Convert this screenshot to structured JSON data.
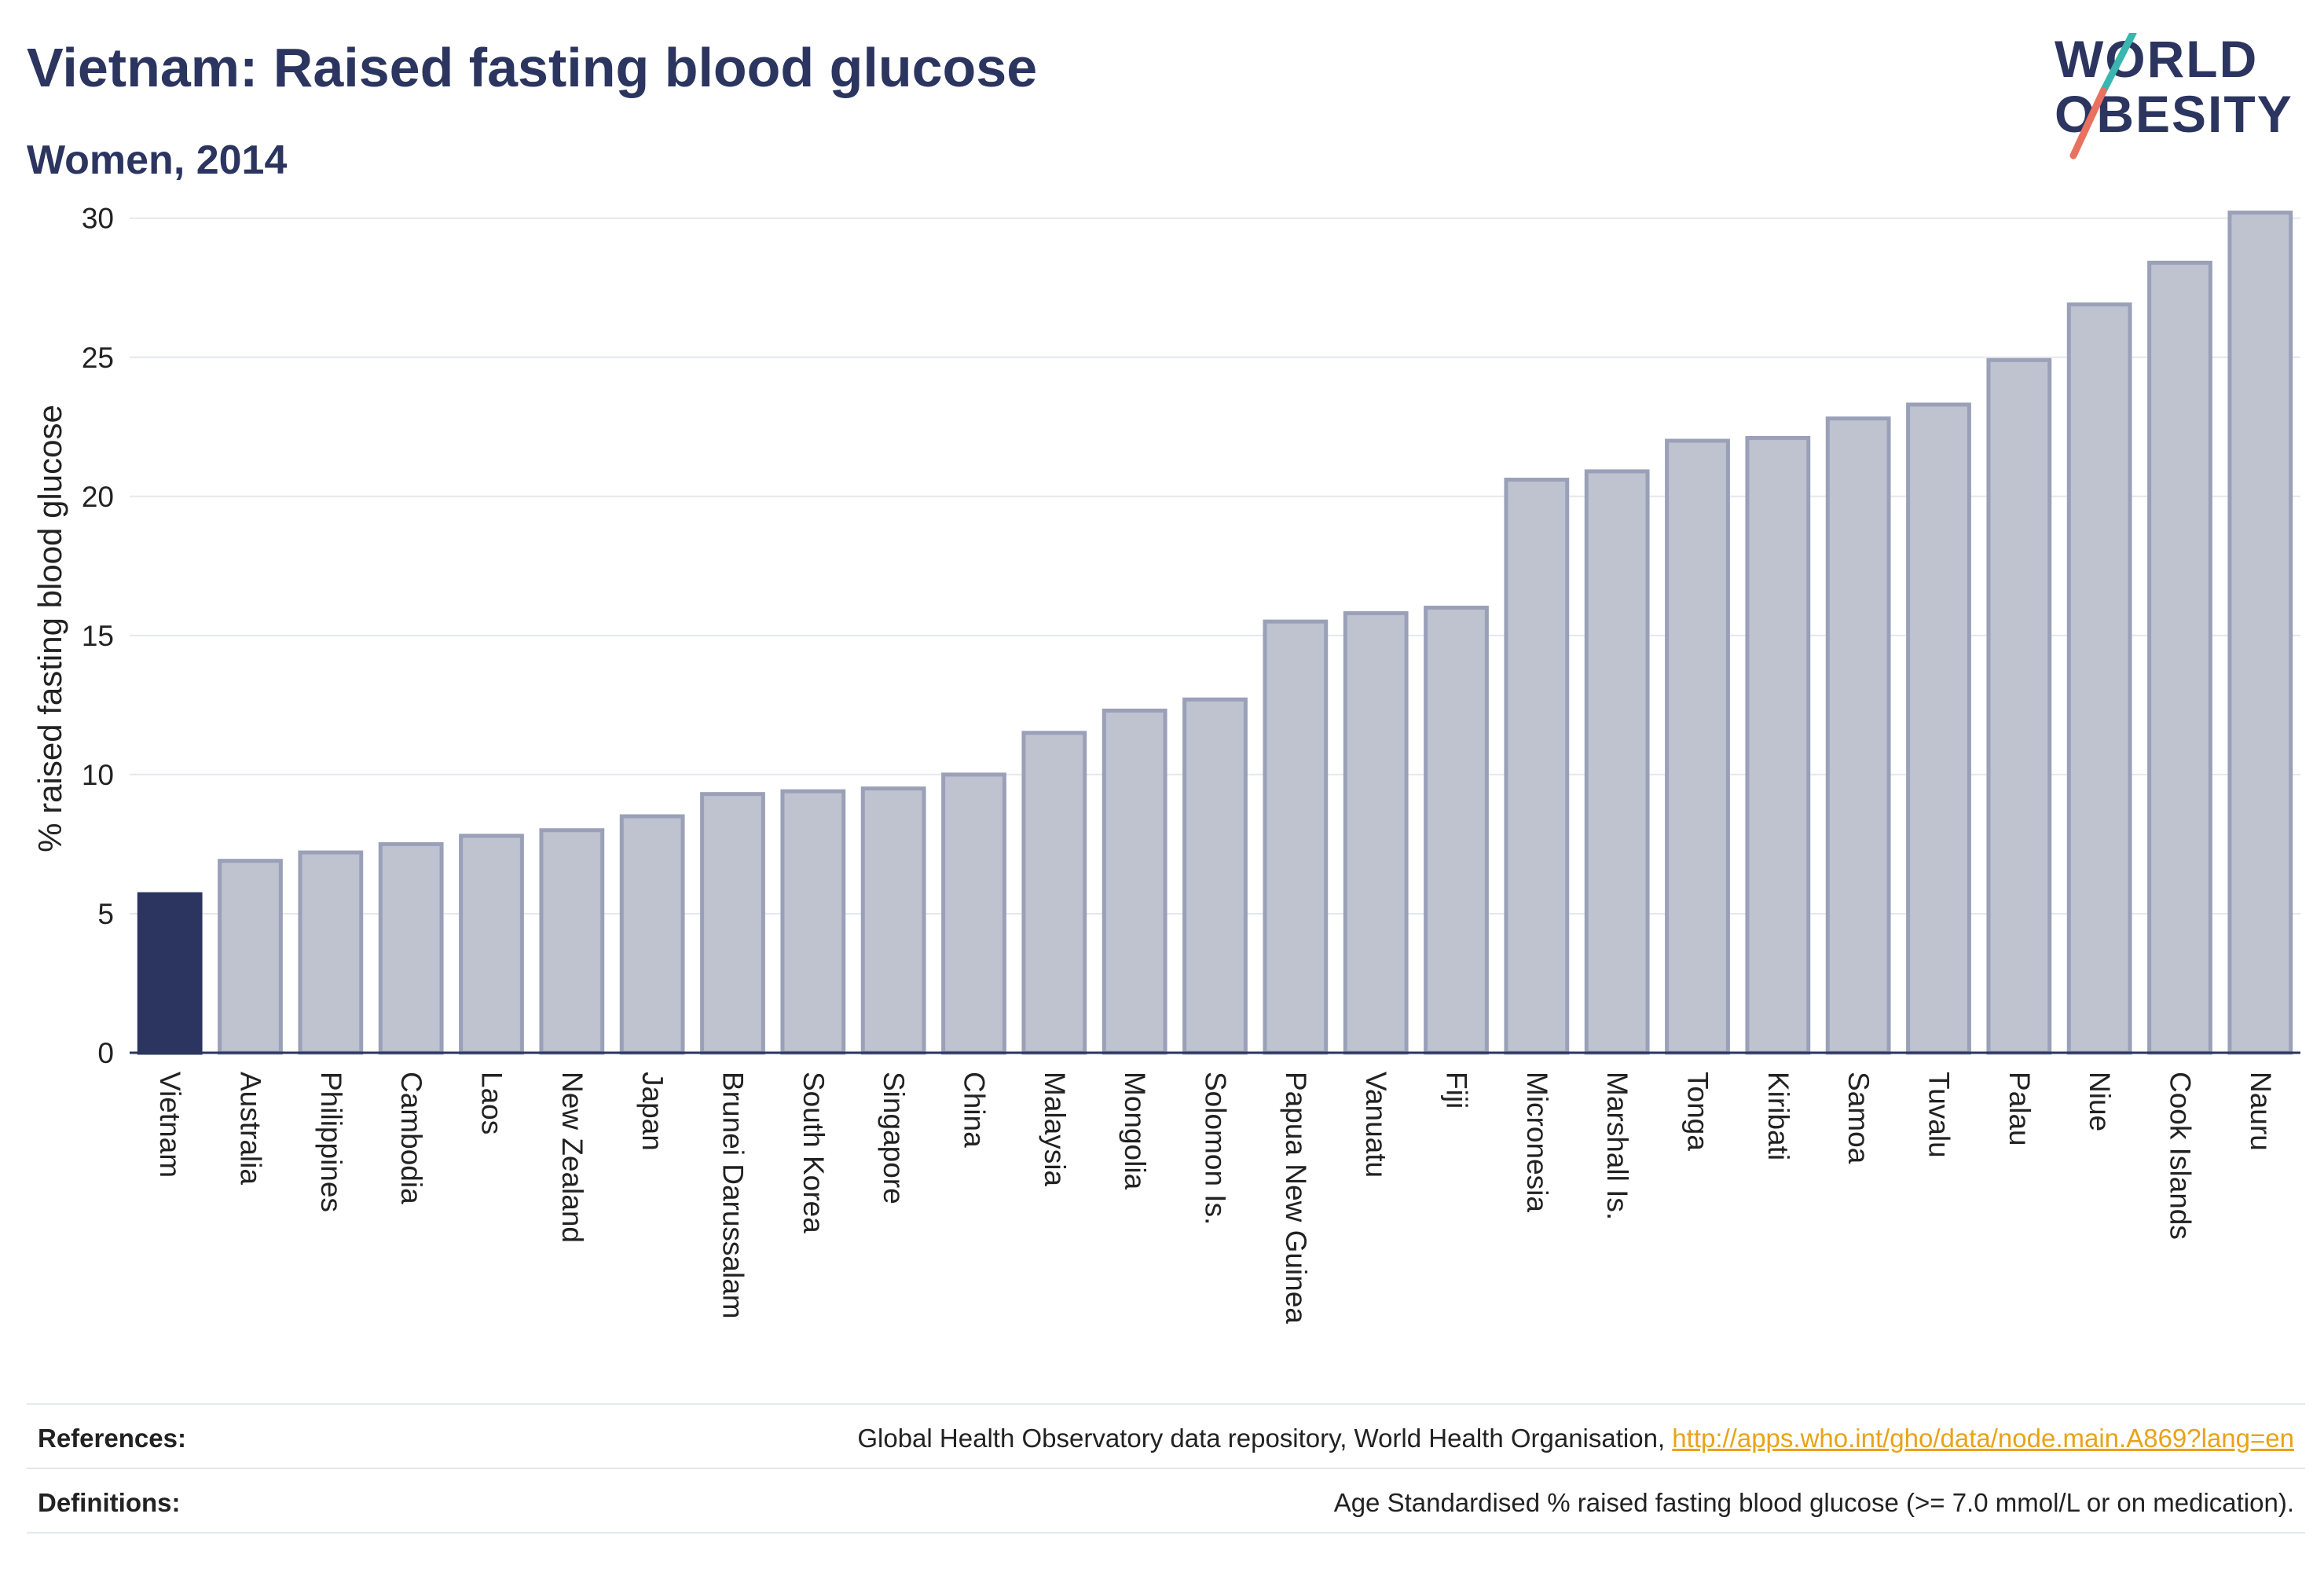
{
  "header": {
    "title": "Vietnam: Raised fasting blood glucose",
    "subtitle": "Women, 2014"
  },
  "logo": {
    "line1": "WORLD",
    "line2": "OBESITY",
    "colors": {
      "text": "#2b355f",
      "accent_teal": "#3ab5b0",
      "accent_coral": "#e8715f"
    }
  },
  "chart_data": {
    "type": "bar",
    "title": "Vietnam: Raised fasting blood glucose",
    "subtitle": "Women, 2014",
    "xlabel": "",
    "ylabel": "% raised fasting blood glucose",
    "ylim": [
      0,
      30.5
    ],
    "yticks": [
      0,
      5,
      10,
      15,
      20,
      25,
      30
    ],
    "grid": true,
    "highlight": "Vietnam",
    "colors": {
      "highlight": "#2b355f",
      "bar_fill": "#bfc2cf",
      "bar_edge": "#9aa0b8"
    },
    "categories": [
      "Vietnam",
      "Australia",
      "Philippines",
      "Cambodia",
      "Laos",
      "New Zealand",
      "Japan",
      "Brunei Darussalam",
      "South Korea",
      "Singapore",
      "China",
      "Malaysia",
      "Mongolia",
      "Solomon Is.",
      "Papua New Guinea",
      "Vanuatu",
      "Fiji",
      "Micronesia",
      "Marshall Is.",
      "Tonga",
      "Kiribati",
      "Samoa",
      "Tuvalu",
      "Palau",
      "Niue",
      "Cook Islands",
      "Nauru"
    ],
    "values": [
      5.7,
      6.9,
      7.2,
      7.5,
      7.8,
      8.0,
      8.5,
      9.3,
      9.4,
      9.5,
      10.0,
      11.5,
      12.3,
      12.7,
      15.5,
      15.8,
      16.0,
      20.6,
      20.9,
      22.0,
      22.1,
      22.8,
      23.3,
      24.9,
      26.9,
      28.4,
      30.2
    ]
  },
  "footer": {
    "references_label": "References:",
    "references_text": "Global Health Observatory data repository, World Health Organisation, ",
    "references_link": "http://apps.who.int/gho/data/node.main.A869?lang=en",
    "definitions_label": "Definitions:",
    "definitions_text": "Age Standardised % raised fasting blood glucose (>= 7.0 mmol/L or on medication)."
  }
}
